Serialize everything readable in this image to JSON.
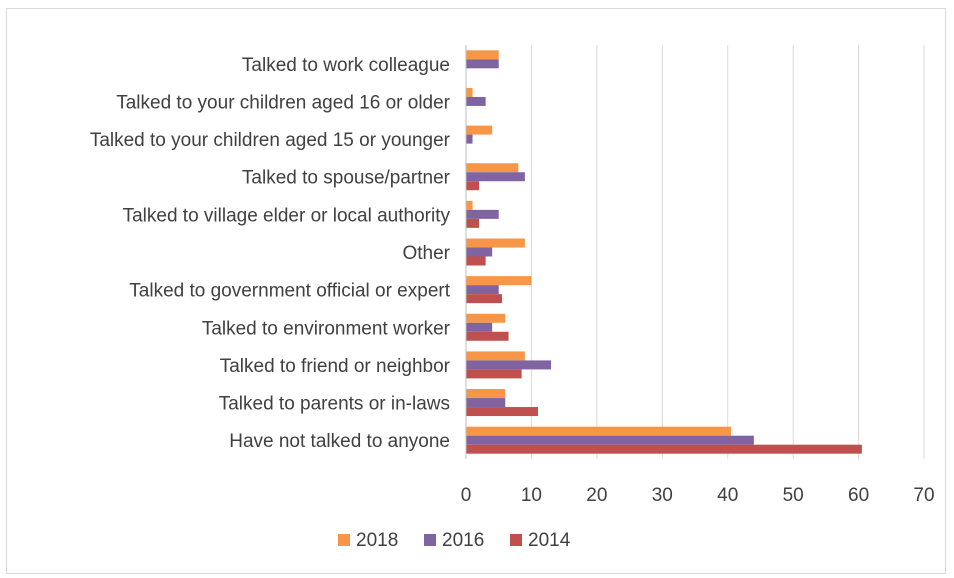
{
  "chart_data": {
    "type": "bar",
    "orientation": "horizontal",
    "categories": [
      "Talked to work colleague",
      "Talked to your children aged 16 or older",
      "Talked to your children aged 15 or younger",
      "Talked to spouse/partner",
      "Talked to village elder or local authority",
      "Other",
      "Talked to government official or expert",
      "Talked to environment worker",
      "Talked to friend or neighbor",
      "Talked to parents or in-laws",
      "Have not talked to anyone"
    ],
    "series": [
      {
        "name": "2018",
        "color": "#f79646",
        "values": [
          5,
          1,
          4,
          8,
          1,
          9,
          10,
          6,
          9,
          6,
          40.5
        ]
      },
      {
        "name": "2016",
        "color": "#8064a2",
        "values": [
          5,
          3,
          1,
          9,
          5,
          4,
          5,
          4,
          13,
          6,
          44
        ]
      },
      {
        "name": "2014",
        "color": "#c0504d",
        "values": [
          0,
          0,
          0,
          2,
          2,
          3,
          5.5,
          6.5,
          8.5,
          11,
          60.5
        ]
      }
    ],
    "xlim": [
      0,
      70
    ],
    "xticks": [
      "0",
      "10",
      "20",
      "30",
      "40",
      "50",
      "60",
      "70"
    ],
    "grid": "vertical",
    "legend_position": "bottom",
    "title": "",
    "xlabel": "",
    "ylabel": ""
  }
}
